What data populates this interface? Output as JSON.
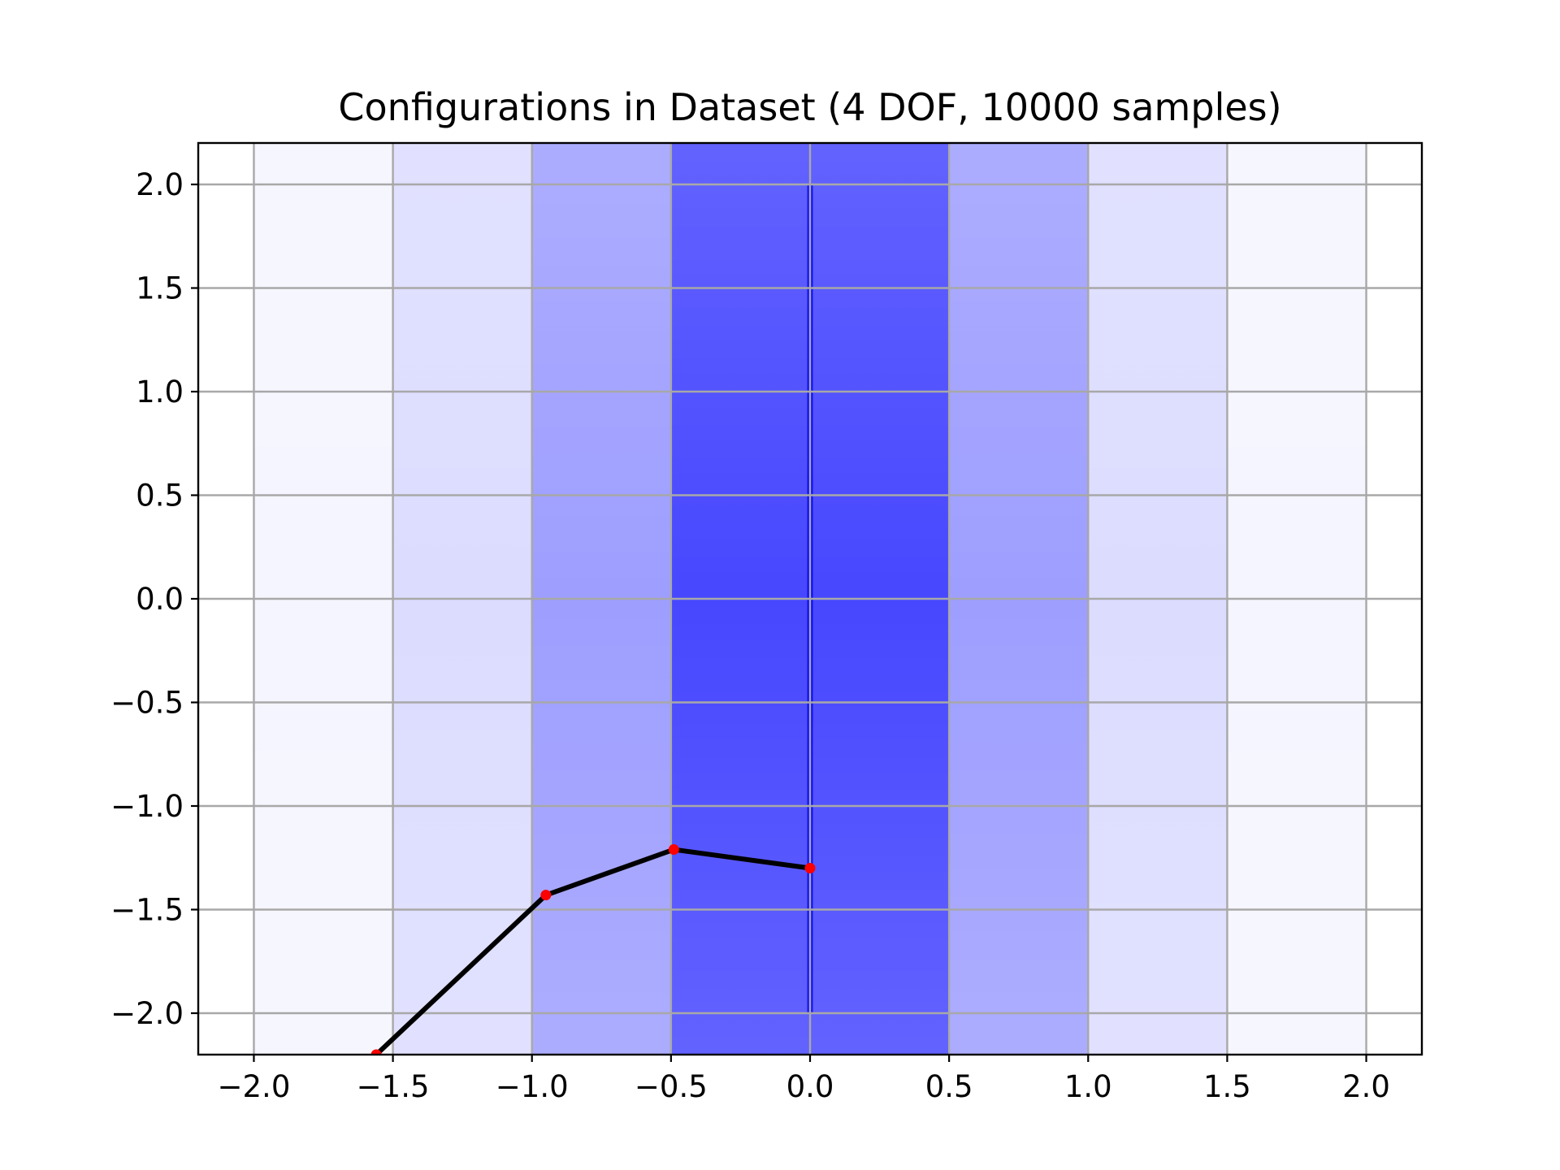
{
  "chart_data": {
    "type": "line",
    "title": "Configurations in Dataset (4 DOF, 10000 samples)",
    "xlabel": "",
    "ylabel": "",
    "xlim": [
      -2.2,
      2.2
    ],
    "ylim": [
      -2.2,
      2.2
    ],
    "x_ticks": [
      -2.0,
      -1.5,
      -1.0,
      -0.5,
      0.0,
      0.5,
      1.0,
      1.5,
      2.0
    ],
    "y_ticks": [
      -2.0,
      -1.5,
      -1.0,
      -0.5,
      0.0,
      0.5,
      1.0,
      1.5,
      2.0
    ],
    "x_tick_labels": [
      "−2.0",
      "−1.5",
      "−1.0",
      "−0.5",
      "0.0",
      "0.5",
      "1.0",
      "1.5",
      "2.0"
    ],
    "y_tick_labels": [
      "−2.0",
      "−1.5",
      "−1.0",
      "−0.5",
      "0.0",
      "0.5",
      "1.0",
      "1.5",
      "2.0"
    ],
    "grid": true,
    "colors": {
      "samples": "#0000ff",
      "arm": "#000000",
      "joints": "#ff0000"
    },
    "sample_cloud": {
      "description_color": "#0000ff",
      "base_segment": {
        "x": [
          0.0,
          0.0
        ],
        "y": [
          -2.0,
          2.0
        ]
      },
      "density_bands": [
        {
          "x": [
            -0.5,
            0.5
          ],
          "opacity": 0.55
        },
        {
          "x": [
            -1.0,
            1.0
          ],
          "opacity": 0.28
        },
        {
          "x": [
            -1.5,
            1.5
          ],
          "opacity": 0.1
        },
        {
          "x": [
            -2.0,
            2.0
          ],
          "opacity": 0.04
        }
      ]
    },
    "series": [
      {
        "x": [
          0.0,
          -0.49,
          -0.95,
          -1.56
        ],
        "y": [
          -1.3,
          -1.21,
          -1.43,
          -2.2
        ]
      }
    ]
  }
}
